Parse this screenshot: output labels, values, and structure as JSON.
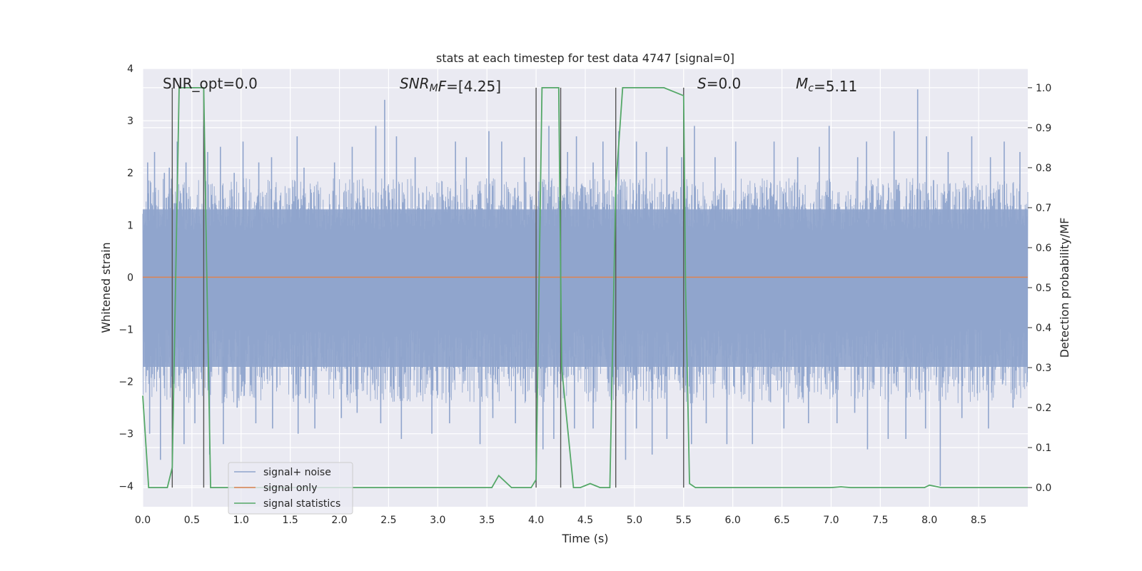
{
  "chart_data": {
    "type": "line",
    "title": "stats at each timestep for test data 4747 [signal=0]",
    "xlabel": "Time (s)",
    "ylabel": "Whitened strain",
    "y2label": "Detection probability/MF",
    "xlim": [
      0.0,
      9.0
    ],
    "ylim": [
      -4.4,
      4.0
    ],
    "y2lim": [
      -0.048,
      1.048
    ],
    "xticks": [
      0.0,
      0.5,
      1.0,
      1.5,
      2.0,
      2.5,
      3.0,
      3.5,
      4.0,
      4.5,
      5.0,
      5.5,
      6.0,
      6.5,
      7.0,
      7.5,
      8.0,
      8.5
    ],
    "xtick_labels": [
      "0.0",
      "0.5",
      "1.0",
      "1.5",
      "2.0",
      "2.5",
      "3.0",
      "3.5",
      "4.0",
      "4.5",
      "5.0",
      "5.5",
      "6.0",
      "6.5",
      "7.0",
      "7.5",
      "8.0",
      "8.5"
    ],
    "yticks": [
      4,
      3,
      2,
      1,
      0,
      -1,
      -2,
      -3,
      -4
    ],
    "ytick_labels": [
      "4",
      "3",
      "2",
      "1",
      "0",
      "−1",
      "−2",
      "−3",
      "−4"
    ],
    "y2ticks": [
      1.0,
      0.9,
      0.8,
      0.7,
      0.6,
      0.5,
      0.4,
      0.3,
      0.2,
      0.1,
      0.0
    ],
    "y2tick_labels": [
      "1.0",
      "0.9",
      "0.8",
      "0.7",
      "0.6",
      "0.5",
      "0.4",
      "0.3",
      "0.2",
      "0.1",
      "0.0"
    ],
    "annotations": [
      {
        "id": "snr-opt",
        "parts": [
          {
            "t": "SNR_opt=0.0",
            "style": "normal"
          }
        ]
      },
      {
        "id": "snr-mf",
        "parts": [
          {
            "t": "SNR",
            "style": "italic"
          },
          {
            "t": "M",
            "style": "italic-sub"
          },
          {
            "t": "F",
            "style": "italic"
          },
          {
            "t": "=[4.25]",
            "style": "normal"
          }
        ]
      },
      {
        "id": "s",
        "parts": [
          {
            "t": "S",
            "style": "italic"
          },
          {
            "t": "=0.0",
            "style": "normal"
          }
        ]
      },
      {
        "id": "mc",
        "parts": [
          {
            "t": "M",
            "style": "italic"
          },
          {
            "t": "c",
            "style": "italic-sub"
          },
          {
            "t": "=5.11",
            "style": "normal"
          }
        ]
      }
    ],
    "legend": {
      "position": "lower-left",
      "entries": [
        {
          "label": "signal+ noise",
          "color": "#8fa4cc"
        },
        {
          "label": "signal only",
          "color": "#dd8452"
        },
        {
          "label": "signal statistics",
          "color": "#55a868"
        }
      ]
    },
    "series": [
      {
        "name": "signal+ noise",
        "kind": "noise-band",
        "color": "#8fa4cc",
        "core_band": [
          -1.72,
          1.3
        ],
        "peak_times": [
          0.05,
          0.12,
          0.22,
          0.27,
          0.35,
          0.44,
          0.62,
          0.66,
          0.79,
          0.93,
          1.02,
          1.18,
          1.31,
          1.57,
          1.64,
          1.95,
          2.13,
          2.37,
          2.46,
          2.58,
          2.77,
          3.18,
          3.29,
          3.52,
          3.65,
          3.88,
          4.13,
          4.32,
          4.41,
          4.58,
          4.68,
          4.84,
          5.02,
          5.12,
          5.33,
          5.48,
          5.61,
          5.82,
          6.03,
          6.42,
          6.66,
          6.88,
          6.98,
          7.27,
          7.36,
          7.64,
          7.88,
          7.97,
          8.19,
          8.43,
          8.62,
          8.76,
          8.92
        ],
        "peak_values": [
          2.2,
          2.4,
          2.0,
          2.1,
          2.6,
          2.2,
          2.9,
          2.4,
          2.5,
          2.0,
          2.6,
          2.2,
          2.3,
          2.7,
          2.1,
          2.2,
          2.5,
          2.9,
          3.4,
          2.7,
          2.3,
          2.6,
          2.3,
          2.8,
          2.6,
          2.3,
          2.9,
          2.4,
          2.7,
          2.2,
          2.6,
          2.8,
          2.6,
          2.4,
          2.5,
          2.3,
          2.9,
          2.3,
          2.6,
          2.6,
          2.3,
          2.5,
          2.9,
          2.3,
          2.6,
          2.8,
          3.6,
          2.7,
          2.4,
          2.7,
          2.3,
          2.6,
          2.4
        ],
        "trough_times": [
          0.07,
          0.18,
          0.3,
          0.42,
          0.53,
          0.68,
          0.82,
          0.96,
          1.15,
          1.32,
          1.58,
          1.75,
          2.02,
          2.18,
          2.42,
          2.63,
          2.94,
          3.12,
          3.43,
          3.56,
          3.79,
          4.07,
          4.18,
          4.39,
          4.58,
          4.91,
          5.02,
          5.18,
          5.33,
          5.58,
          5.73,
          5.94,
          6.2,
          6.52,
          6.77,
          7.06,
          7.24,
          7.37,
          7.58,
          7.76,
          7.96,
          8.11,
          8.33,
          8.6,
          8.85
        ],
        "trough_values": [
          -3.0,
          -3.5,
          -2.9,
          -3.2,
          -2.8,
          -3.4,
          -3.2,
          -2.5,
          -2.8,
          -2.9,
          -3.0,
          -2.9,
          -2.7,
          -2.6,
          -2.8,
          -3.1,
          -3.0,
          -2.8,
          -3.2,
          -2.7,
          -2.8,
          -3.3,
          -3.1,
          -2.9,
          -2.9,
          -3.5,
          -2.9,
          -3.4,
          -3.1,
          -3.2,
          -2.8,
          -3.2,
          -3.2,
          -2.9,
          -2.8,
          -2.8,
          -2.6,
          -3.3,
          -3.1,
          -3.1,
          -2.9,
          -4.0,
          -2.7,
          -2.9,
          -2.5
        ]
      },
      {
        "name": "signal only",
        "kind": "line",
        "color": "#dd8452",
        "x": [
          0.0,
          9.0
        ],
        "y": [
          0.0,
          0.0
        ]
      },
      {
        "name": "signal statistics",
        "kind": "line",
        "axis": "right",
        "color": "#55a868",
        "x": [
          0.0,
          0.06,
          0.1,
          0.25,
          0.3,
          0.37,
          0.62,
          0.65,
          0.69,
          0.72,
          0.9,
          3.55,
          3.62,
          3.75,
          3.95,
          4.0,
          4.06,
          4.23,
          4.26,
          4.38,
          4.45,
          4.55,
          4.65,
          4.75,
          4.81,
          4.88,
          5.3,
          5.5,
          5.52,
          5.56,
          5.62,
          7.0,
          7.1,
          7.2,
          7.95,
          8.0,
          8.12,
          8.5,
          9.0
        ],
        "y": [
          0.23,
          0.0,
          0.0,
          0.0,
          0.05,
          1.0,
          1.0,
          0.55,
          0.0,
          0.0,
          0.0,
          0.0,
          0.03,
          0.0,
          0.0,
          0.02,
          1.0,
          1.0,
          0.3,
          0.0,
          0.0,
          0.01,
          0.0,
          0.0,
          0.75,
          1.0,
          1.0,
          0.98,
          0.5,
          0.01,
          0.0,
          0.0,
          0.002,
          0.0,
          0.0,
          0.006,
          0.0,
          0.0,
          0.0
        ]
      }
    ],
    "vlines_x": [
      0.3,
      0.62,
      4.0,
      4.25,
      4.81,
      5.5
    ]
  }
}
